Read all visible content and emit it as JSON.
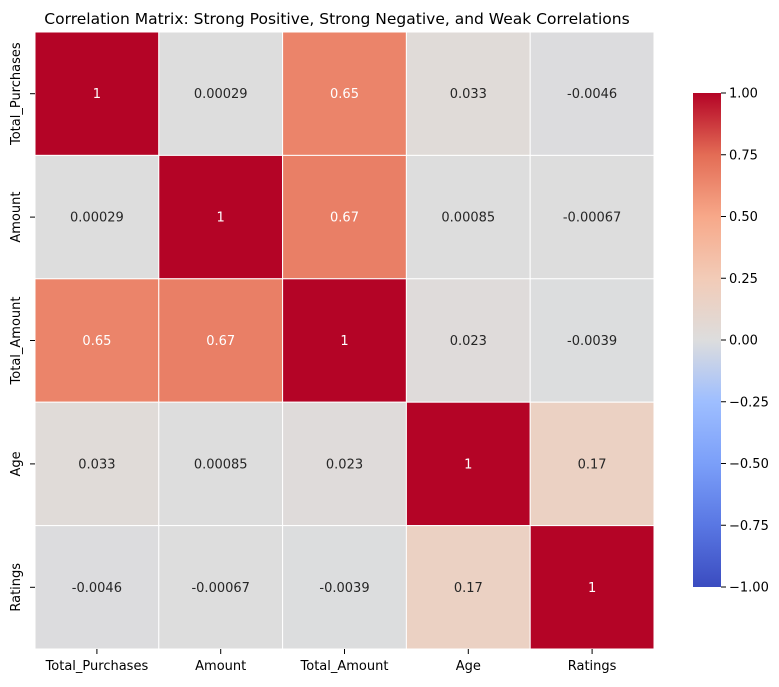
{
  "chart_data": {
    "type": "heatmap",
    "title": "Correlation Matrix: Strong Positive, Strong Negative, and Weak Correlations",
    "xlabel": "",
    "ylabel": "",
    "rows": [
      "Total_Purchases",
      "Amount",
      "Total_Amount",
      "Age",
      "Ratings"
    ],
    "columns": [
      "Total_Purchases",
      "Amount",
      "Total_Amount",
      "Age",
      "Ratings"
    ],
    "values": [
      [
        1,
        0.00029,
        0.65,
        0.033,
        -0.0046
      ],
      [
        0.00029,
        1,
        0.67,
        0.00085,
        -0.00067
      ],
      [
        0.65,
        0.67,
        1,
        0.023,
        -0.0039
      ],
      [
        0.033,
        0.00085,
        0.023,
        1,
        0.17
      ],
      [
        -0.0046,
        -0.00067,
        -0.0039,
        0.17,
        1
      ]
    ],
    "annotations": [
      [
        "1",
        "0.00029",
        "0.65",
        "0.033",
        "-0.0046"
      ],
      [
        "0.00029",
        "1",
        "0.67",
        "0.00085",
        "-0.00067"
      ],
      [
        "0.65",
        "0.67",
        "1",
        "0.023",
        "-0.0039"
      ],
      [
        "0.033",
        "0.00085",
        "0.023",
        "1",
        "0.17"
      ],
      [
        "-0.0046",
        "-0.00067",
        "-0.0039",
        "0.17",
        "1"
      ]
    ],
    "colorscale": "coolwarm",
    "vmin": -1,
    "vmax": 1,
    "colorbar_ticks": [
      "1.00",
      "0.75",
      "0.50",
      "0.25",
      "0.00",
      "−0.25",
      "−0.50",
      "−0.75",
      "−1.00"
    ],
    "colorbar_tick_values": [
      1,
      0.75,
      0.5,
      0.25,
      0,
      -0.25,
      -0.5,
      -0.75,
      -1
    ],
    "grid": false,
    "legend": "colorbar-right"
  }
}
